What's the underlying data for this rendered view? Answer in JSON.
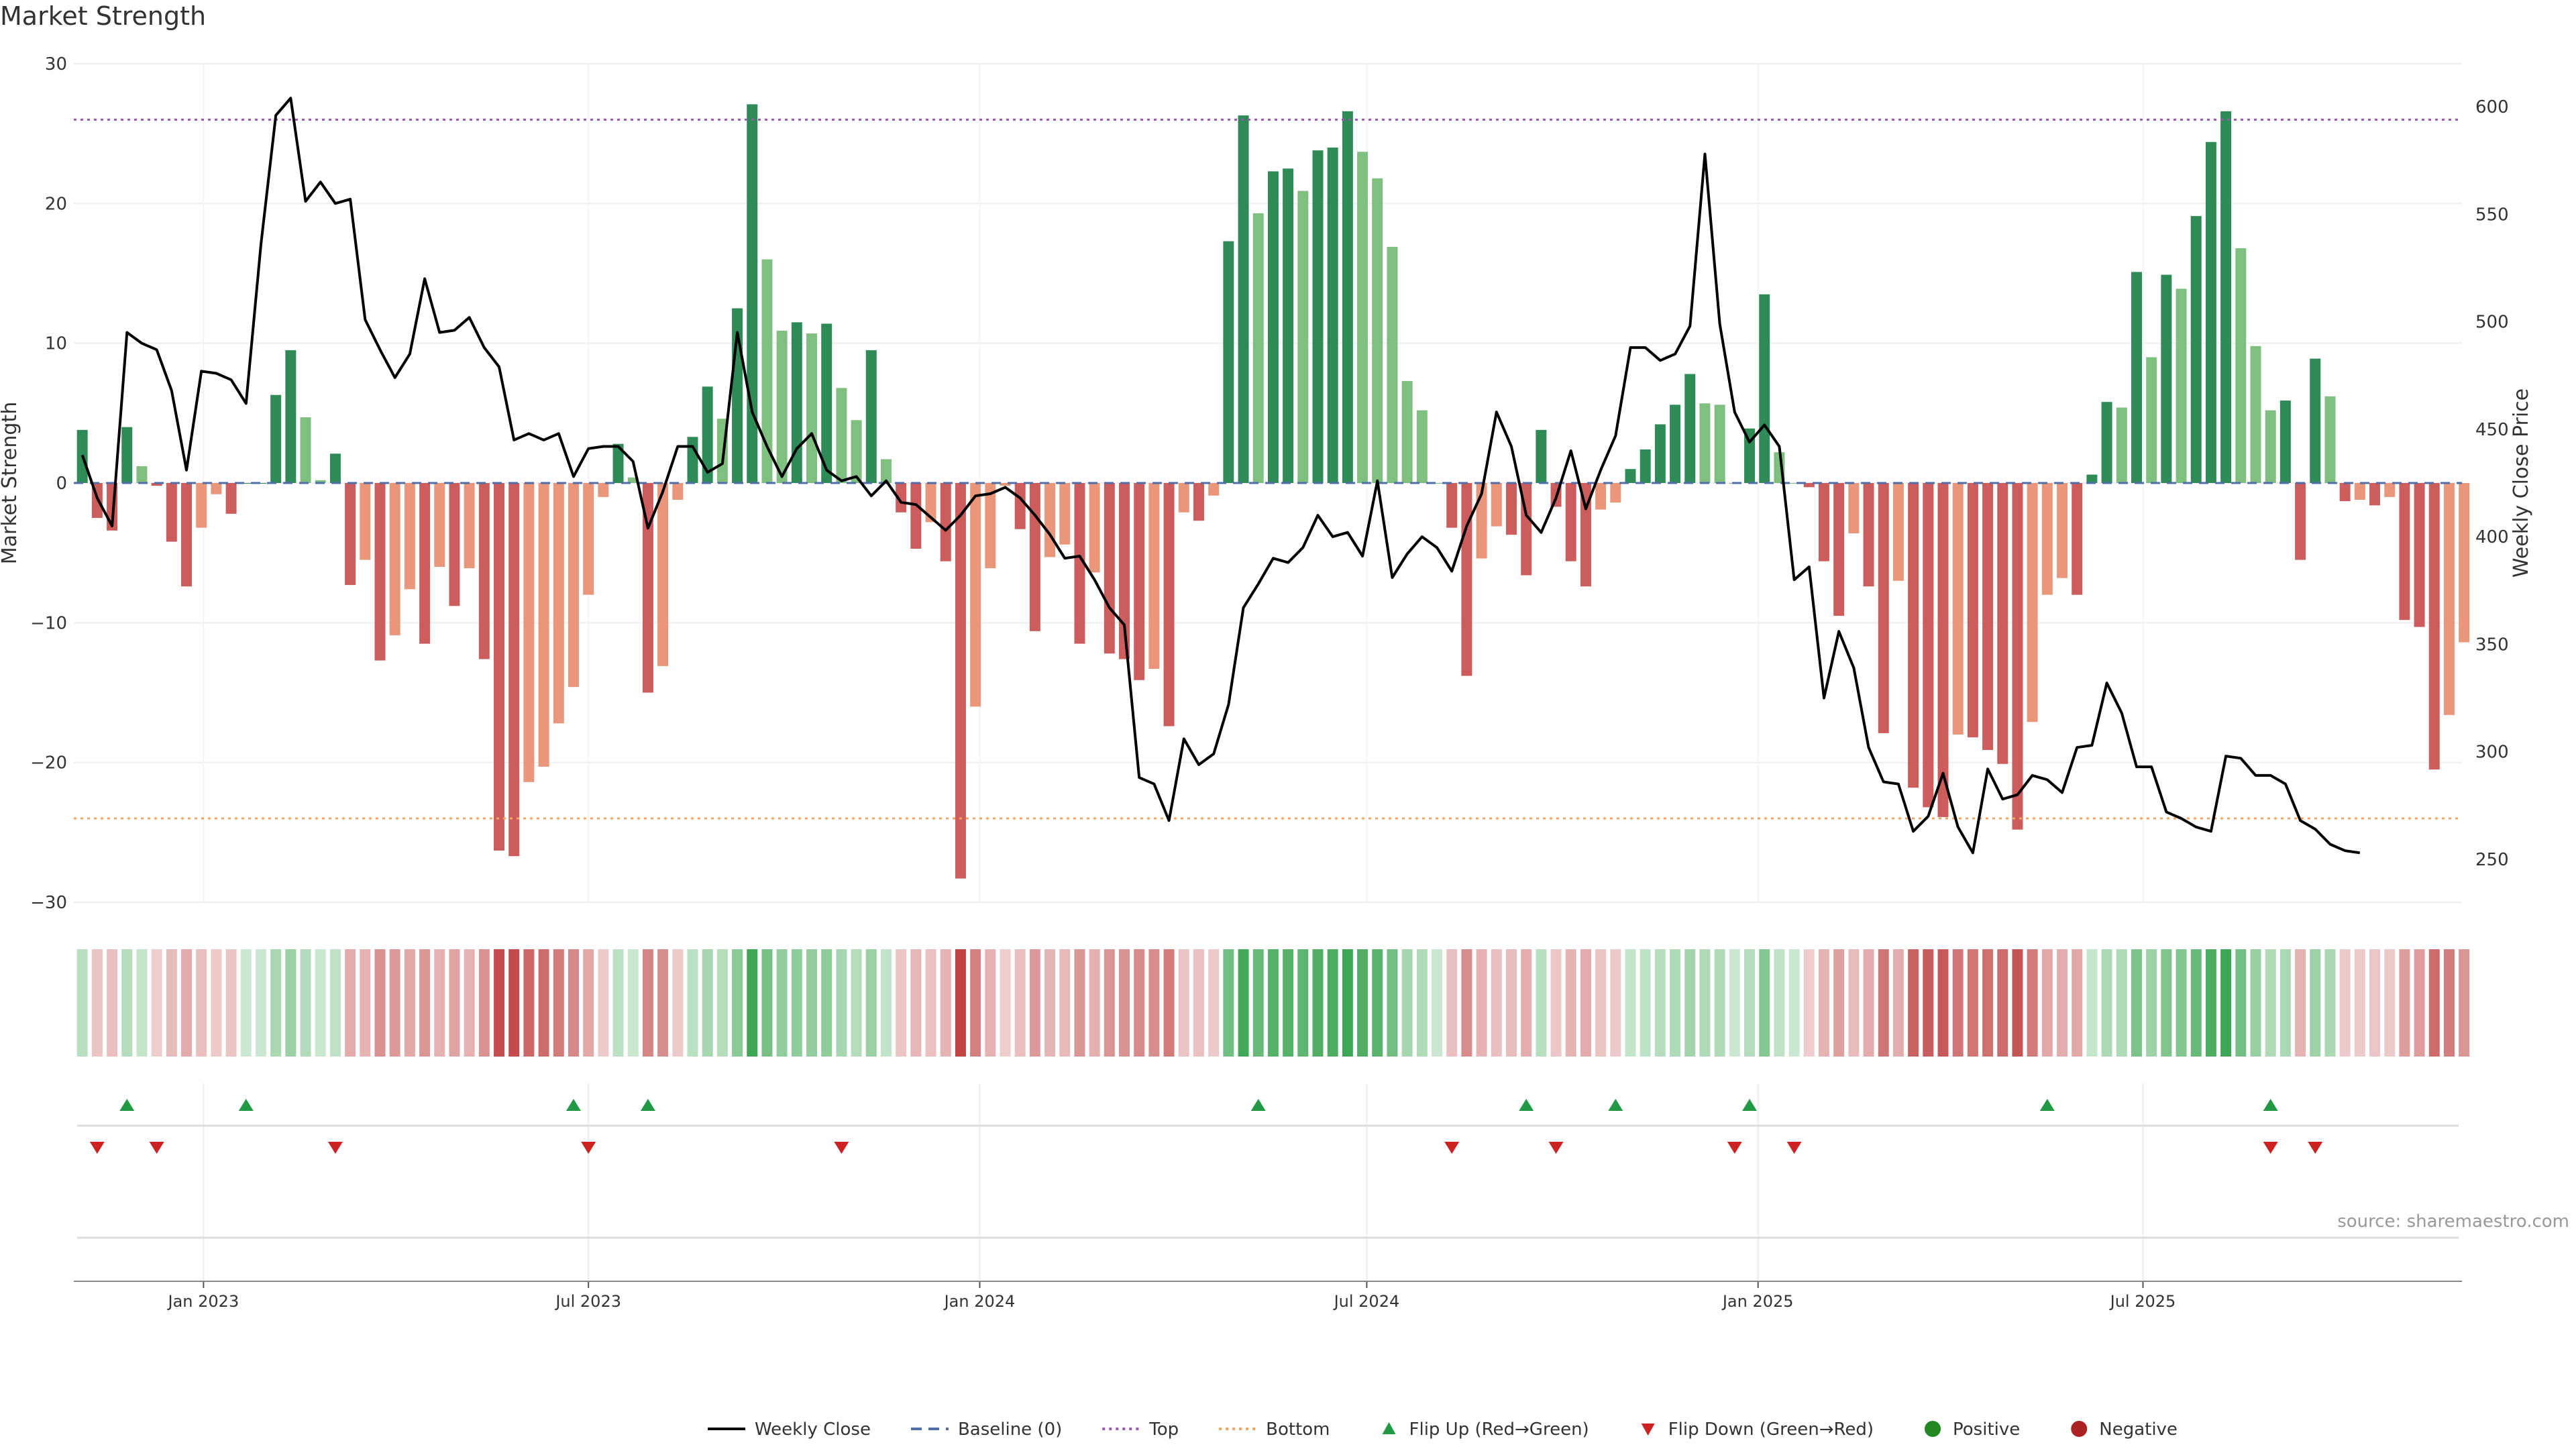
{
  "chart_data": {
    "type": "bar",
    "title": "Market Strength",
    "ylabel": "Market Strength",
    "y2label": "Weekly Close Price",
    "ylim": [
      -30,
      30
    ],
    "y2lim": [
      230,
      620
    ],
    "yticks": [
      30,
      20,
      10,
      0,
      -10,
      -20,
      -30
    ],
    "y2ticks": [
      600,
      550,
      500,
      450,
      400,
      350,
      300,
      250
    ],
    "xlim": [
      "2022-11-01",
      "2025-11-28"
    ],
    "x_tick_labels": [
      {
        "date": "2023-01-01",
        "label": "Jan 2023"
      },
      {
        "date": "2023-07-01",
        "label": "Jul 2023"
      },
      {
        "date": "2024-01-01",
        "label": "Jan 2024"
      },
      {
        "date": "2024-07-01",
        "label": "Jul 2024"
      },
      {
        "date": "2025-01-01",
        "label": "Jan 2025"
      },
      {
        "date": "2025-07-01",
        "label": "Jul 2025"
      }
    ],
    "first_week": "2022-11-05",
    "week_step_days": 7,
    "strength": [
      3.8,
      -2.5,
      -3.4,
      4,
      1.2,
      -0.2,
      -4.2,
      -7.4,
      -3.2,
      -0.8,
      -2.2,
      0,
      0,
      6.3,
      9.5,
      4.7,
      0.2,
      2.1,
      -7.3,
      -5.5,
      -12.7,
      -10.9,
      -7.6,
      -11.5,
      -6,
      -8.8,
      -6.1,
      -12.6,
      -26.3,
      -26.7,
      -21.4,
      -20.3,
      -17.2,
      -14.6,
      -8,
      -1,
      2.8,
      0.4,
      -15,
      -13.1,
      -1.2,
      3.3,
      6.9,
      4.6,
      12.5,
      27.1,
      16,
      10.9,
      11.5,
      10.7,
      11.4,
      6.8,
      4.5,
      9.5,
      1.7,
      -2.1,
      -4.7,
      -2.8,
      -5.6,
      -28.3,
      -16,
      -6.1,
      -0.2,
      -3.3,
      -10.6,
      -5.3,
      -4.4,
      -11.5,
      -6.4,
      -12.2,
      -12.6,
      -14.1,
      -13.3,
      -17.4,
      -2.1,
      -2.7,
      -0.9,
      17.3,
      26.3,
      19.3,
      22.3,
      22.5,
      20.9,
      23.8,
      24,
      26.6,
      23.7,
      21.8,
      16.9,
      7.3,
      5.2,
      0,
      -3.2,
      -13.8,
      -5.4,
      -3.1,
      -3.7,
      -6.6,
      3.8,
      -1.7,
      -5.6,
      -7.4,
      -1.9,
      -1.4,
      1,
      2.4,
      4.2,
      5.6,
      7.8,
      5.7,
      5.6,
      0,
      3.9,
      13.5,
      2.2,
      0,
      -0.3,
      -5.6,
      -9.5,
      -3.6,
      -7.4,
      -17.9,
      -7,
      -21.8,
      -23.2,
      -23.9,
      -18,
      -18.2,
      -19.1,
      -20.1,
      -24.8,
      -17.1,
      -8,
      -6.8,
      -8,
      0.6,
      5.8,
      5.4,
      15.1,
      9,
      14.9,
      13.9,
      19.1,
      24.4,
      26.6,
      16.8,
      9.8,
      5.2,
      5.9,
      -5.5,
      8.9,
      6.2,
      -1.3,
      -1.2,
      -1.6,
      -1,
      -9.8,
      -10.3,
      -20.5,
      -16.6,
      -11.4
    ],
    "weekly_close": [
      438,
      418,
      405,
      495,
      490,
      487,
      468,
      431,
      477,
      476,
      473,
      462,
      536,
      596,
      604,
      556,
      565,
      555,
      557,
      501,
      487,
      474,
      485,
      520,
      495,
      496,
      502,
      488,
      479,
      445,
      448,
      445,
      448,
      428,
      441,
      442,
      442,
      435,
      404,
      421,
      442,
      442,
      430,
      434,
      495,
      458,
      442,
      428,
      441,
      448,
      431,
      426,
      428,
      419,
      426,
      416,
      415,
      409,
      403,
      410,
      419,
      420,
      423,
      418,
      410,
      401,
      390,
      391,
      380,
      367,
      359,
      288,
      285,
      268,
      306,
      294,
      299,
      322,
      367,
      378,
      390,
      388,
      395,
      410,
      400,
      402,
      391,
      426,
      381,
      392,
      400,
      395,
      384,
      405,
      420,
      458,
      442,
      410,
      402,
      418,
      440,
      413,
      431,
      447,
      488,
      488,
      482,
      485,
      498,
      578,
      499,
      458,
      444,
      452,
      442,
      380,
      386,
      325,
      356,
      339,
      302,
      286,
      285,
      263,
      270,
      290,
      265,
      253,
      292,
      278,
      280,
      289,
      287,
      281,
      302,
      303,
      332,
      318,
      293,
      293,
      272,
      269,
      265,
      263,
      298,
      297,
      289,
      289,
      285,
      268,
      264,
      257,
      254,
      253
    ],
    "flip_up": [
      "2022-11-26",
      "2023-01-21",
      "2023-06-24",
      "2023-07-29",
      "2024-05-11",
      "2024-09-14",
      "2024-10-26",
      "2024-12-28",
      "2025-05-17",
      "2025-08-30"
    ],
    "flip_down": [
      "2022-11-12",
      "2022-12-10",
      "2023-03-04",
      "2023-07-01",
      "2023-10-28",
      "2024-08-10",
      "2024-09-28",
      "2024-12-21",
      "2025-01-18",
      "2025-08-30",
      "2025-09-20"
    ],
    "top_line": 26,
    "bottom_line": -24,
    "colors": {
      "strong_green": "#2e8b57",
      "light_green": "#7fbf7f",
      "strong_red": "#cd5c5c",
      "light_red": "#e9967a",
      "price_line": "#000000",
      "baseline": "#4f6fa8",
      "top": "#9b59b6",
      "bottom": "#f4a460",
      "flip_up": "#229944",
      "flip_down": "#cc2222",
      "positive": "#228822",
      "negative": "#aa2222"
    },
    "legend": [
      {
        "label": "Weekly Close",
        "kind": "line",
        "color": "#000000"
      },
      {
        "label": "Baseline (0)",
        "kind": "dash",
        "color": "#4f6fa8"
      },
      {
        "label": "Top",
        "kind": "dot",
        "color": "#9b59b6"
      },
      {
        "label": "Bottom",
        "kind": "dot",
        "color": "#f4a460"
      },
      {
        "label": "Flip Up (Red→Green)",
        "kind": "up",
        "color": "#229944"
      },
      {
        "label": "Flip Down (Green→Red)",
        "kind": "down",
        "color": "#cc2222"
      },
      {
        "label": "Positive",
        "kind": "circle",
        "color": "#228822"
      },
      {
        "label": "Negative",
        "kind": "circle",
        "color": "#aa2222"
      }
    ],
    "legend_position": "bottom",
    "source": "source: sharemaestro.com"
  }
}
